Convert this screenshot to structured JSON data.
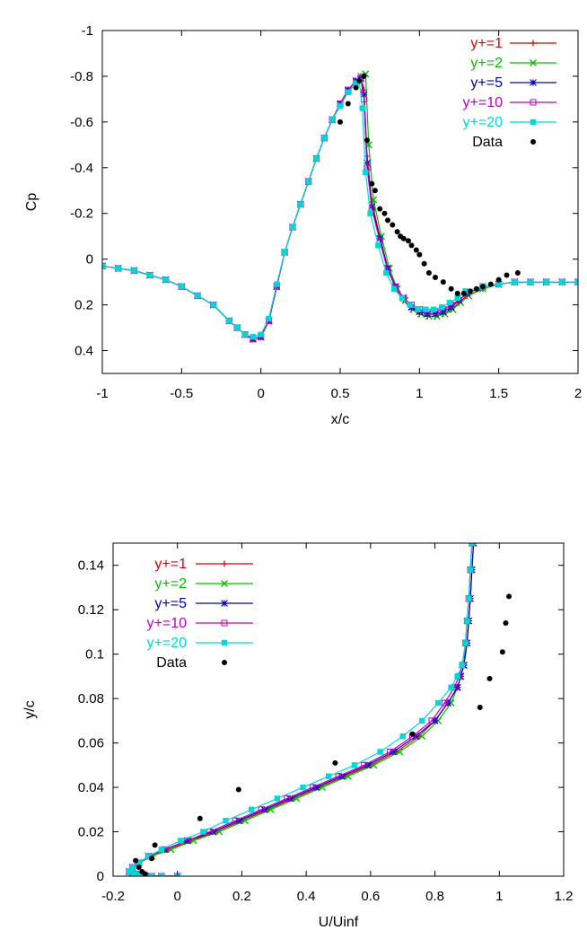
{
  "chart_data": [
    {
      "type": "line",
      "xlabel": "x/c",
      "ylabel": "Cp",
      "xlim": [
        -1,
        2
      ],
      "ylim": [
        0.5,
        -1
      ],
      "y_axis_reversed": true,
      "xticks": [
        -1,
        -0.5,
        0,
        0.5,
        1,
        1.5,
        2
      ],
      "xtick_labels": [
        "-1",
        "-0.5",
        "0",
        "0.5",
        "1",
        "1.5",
        "2"
      ],
      "yticks": [
        -1,
        -0.8,
        -0.6,
        -0.4,
        -0.2,
        0,
        0.2,
        0.4
      ],
      "ytick_labels": [
        "-1",
        "-0.8",
        "-0.6",
        "-0.4",
        "-0.2",
        "0",
        "0.2",
        "0.4"
      ],
      "grid": false,
      "legend_position": "top-right",
      "series": [
        {
          "name": "y+=1",
          "color": "#dd0000",
          "marker": "plus",
          "x": [
            -1.0,
            -0.9,
            -0.8,
            -0.7,
            -0.6,
            -0.5,
            -0.4,
            -0.3,
            -0.2,
            -0.15,
            -0.1,
            -0.05,
            0.0,
            0.05,
            0.1,
            0.15,
            0.2,
            0.25,
            0.3,
            0.35,
            0.4,
            0.45,
            0.5,
            0.55,
            0.6,
            0.63,
            0.65,
            0.67,
            0.7,
            0.75,
            0.8,
            0.85,
            0.9,
            0.95,
            1.0,
            1.05,
            1.1,
            1.15,
            1.2,
            1.25,
            1.3,
            1.4,
            1.5,
            1.6,
            1.7,
            1.8,
            1.9,
            2.0
          ],
          "y": [
            0.03,
            0.04,
            0.05,
            0.07,
            0.09,
            0.12,
            0.16,
            0.2,
            0.27,
            0.3,
            0.33,
            0.35,
            0.34,
            0.27,
            0.12,
            -0.03,
            -0.14,
            -0.24,
            -0.34,
            -0.44,
            -0.53,
            -0.61,
            -0.68,
            -0.74,
            -0.78,
            -0.8,
            -0.74,
            -0.45,
            -0.25,
            -0.1,
            0.04,
            0.13,
            0.18,
            0.22,
            0.24,
            0.25,
            0.25,
            0.24,
            0.22,
            0.19,
            0.16,
            0.13,
            0.11,
            0.1,
            0.1,
            0.1,
            0.1,
            0.1
          ]
        },
        {
          "name": "y+=2",
          "color": "#00c000",
          "marker": "cross",
          "x": [
            -1.0,
            -0.9,
            -0.8,
            -0.7,
            -0.6,
            -0.5,
            -0.4,
            -0.3,
            -0.2,
            -0.15,
            -0.1,
            -0.05,
            0.0,
            0.05,
            0.1,
            0.15,
            0.2,
            0.25,
            0.3,
            0.35,
            0.4,
            0.45,
            0.5,
            0.55,
            0.6,
            0.63,
            0.66,
            0.68,
            0.71,
            0.76,
            0.81,
            0.86,
            0.91,
            0.96,
            1.01,
            1.06,
            1.11,
            1.16,
            1.21,
            1.26,
            1.31,
            1.4,
            1.5,
            1.6,
            1.7,
            1.8,
            1.9,
            2.0
          ],
          "y": [
            0.03,
            0.04,
            0.05,
            0.07,
            0.09,
            0.12,
            0.16,
            0.2,
            0.27,
            0.3,
            0.33,
            0.35,
            0.34,
            0.27,
            0.12,
            -0.03,
            -0.14,
            -0.24,
            -0.34,
            -0.44,
            -0.53,
            -0.61,
            -0.68,
            -0.74,
            -0.78,
            -0.8,
            -0.81,
            -0.5,
            -0.26,
            -0.1,
            0.04,
            0.13,
            0.18,
            0.22,
            0.24,
            0.25,
            0.25,
            0.24,
            0.22,
            0.19,
            0.16,
            0.13,
            0.11,
            0.1,
            0.1,
            0.1,
            0.1,
            0.1
          ]
        },
        {
          "name": "y+=5",
          "color": "#0000c0",
          "marker": "star",
          "x": [
            -1.0,
            -0.9,
            -0.8,
            -0.7,
            -0.6,
            -0.5,
            -0.4,
            -0.3,
            -0.2,
            -0.15,
            -0.1,
            -0.05,
            0.0,
            0.05,
            0.1,
            0.15,
            0.2,
            0.25,
            0.3,
            0.35,
            0.4,
            0.45,
            0.5,
            0.55,
            0.6,
            0.63,
            0.65,
            0.67,
            0.7,
            0.75,
            0.8,
            0.85,
            0.9,
            0.95,
            1.0,
            1.05,
            1.1,
            1.15,
            1.2,
            1.25,
            1.3,
            1.4,
            1.5,
            1.6,
            1.7,
            1.8,
            1.9,
            2.0
          ],
          "y": [
            0.03,
            0.04,
            0.05,
            0.07,
            0.09,
            0.12,
            0.16,
            0.2,
            0.27,
            0.3,
            0.33,
            0.35,
            0.34,
            0.27,
            0.12,
            -0.03,
            -0.14,
            -0.24,
            -0.34,
            -0.44,
            -0.53,
            -0.61,
            -0.68,
            -0.74,
            -0.78,
            -0.79,
            -0.72,
            -0.42,
            -0.23,
            -0.09,
            0.04,
            0.12,
            0.17,
            0.21,
            0.23,
            0.24,
            0.24,
            0.23,
            0.21,
            0.18,
            0.15,
            0.12,
            0.11,
            0.1,
            0.1,
            0.1,
            0.1,
            0.1
          ]
        },
        {
          "name": "y+=10",
          "color": "#c000c0",
          "marker": "square-open",
          "x": [
            -1.0,
            -0.9,
            -0.8,
            -0.7,
            -0.6,
            -0.5,
            -0.4,
            -0.3,
            -0.2,
            -0.15,
            -0.1,
            -0.05,
            0.0,
            0.05,
            0.1,
            0.15,
            0.2,
            0.25,
            0.3,
            0.35,
            0.4,
            0.45,
            0.5,
            0.55,
            0.6,
            0.63,
            0.65,
            0.67,
            0.7,
            0.75,
            0.8,
            0.85,
            0.9,
            0.95,
            1.0,
            1.05,
            1.1,
            1.15,
            1.2,
            1.25,
            1.3,
            1.4,
            1.5,
            1.6,
            1.7,
            1.8,
            1.9,
            2.0
          ],
          "y": [
            0.03,
            0.04,
            0.05,
            0.07,
            0.09,
            0.12,
            0.16,
            0.2,
            0.27,
            0.3,
            0.33,
            0.35,
            0.34,
            0.27,
            0.12,
            -0.03,
            -0.14,
            -0.24,
            -0.34,
            -0.44,
            -0.53,
            -0.61,
            -0.68,
            -0.74,
            -0.78,
            -0.79,
            -0.7,
            -0.4,
            -0.22,
            -0.08,
            0.05,
            0.12,
            0.17,
            0.2,
            0.22,
            0.23,
            0.23,
            0.22,
            0.2,
            0.18,
            0.15,
            0.12,
            0.11,
            0.1,
            0.1,
            0.1,
            0.1,
            0.1
          ]
        },
        {
          "name": "y+=20",
          "color": "#00d8d8",
          "marker": "square-filled",
          "x": [
            -1.0,
            -0.9,
            -0.8,
            -0.7,
            -0.6,
            -0.5,
            -0.4,
            -0.3,
            -0.2,
            -0.15,
            -0.1,
            -0.05,
            0.0,
            0.05,
            0.1,
            0.15,
            0.2,
            0.25,
            0.3,
            0.35,
            0.4,
            0.45,
            0.5,
            0.55,
            0.6,
            0.62,
            0.64,
            0.66,
            0.69,
            0.74,
            0.79,
            0.84,
            0.89,
            0.94,
            0.99,
            1.04,
            1.09,
            1.14,
            1.19,
            1.24,
            1.29,
            1.4,
            1.5,
            1.6,
            1.7,
            1.8,
            1.9,
            2.0
          ],
          "y": [
            0.03,
            0.04,
            0.05,
            0.07,
            0.09,
            0.12,
            0.16,
            0.2,
            0.27,
            0.3,
            0.33,
            0.34,
            0.33,
            0.26,
            0.11,
            -0.03,
            -0.14,
            -0.24,
            -0.34,
            -0.44,
            -0.53,
            -0.61,
            -0.67,
            -0.73,
            -0.77,
            -0.78,
            -0.66,
            -0.38,
            -0.2,
            -0.06,
            0.06,
            0.13,
            0.17,
            0.2,
            0.22,
            0.22,
            0.22,
            0.21,
            0.19,
            0.17,
            0.14,
            0.12,
            0.11,
            0.1,
            0.1,
            0.1,
            0.1,
            0.1
          ]
        },
        {
          "name": "Data",
          "color": "#000000",
          "marker": "dot",
          "style": "points",
          "x": [
            0.5,
            0.55,
            0.6,
            0.62,
            0.65,
            0.67,
            0.7,
            0.72,
            0.75,
            0.78,
            0.8,
            0.83,
            0.86,
            0.88,
            0.9,
            0.93,
            0.95,
            0.98,
            1.0,
            1.03,
            1.06,
            1.1,
            1.15,
            1.2,
            1.24,
            1.28,
            1.32,
            1.36,
            1.4,
            1.45,
            1.5,
            1.55,
            1.62
          ],
          "y": [
            -0.6,
            -0.68,
            -0.75,
            -0.78,
            -0.8,
            -0.52,
            -0.33,
            -0.3,
            -0.22,
            -0.2,
            -0.17,
            -0.15,
            -0.12,
            -0.1,
            -0.09,
            -0.08,
            -0.06,
            -0.04,
            -0.02,
            0.02,
            0.06,
            0.08,
            0.1,
            0.13,
            0.15,
            0.15,
            0.14,
            0.13,
            0.12,
            0.11,
            0.09,
            0.07,
            0.06
          ]
        }
      ]
    },
    {
      "type": "line",
      "xlabel": "U/Uinf",
      "ylabel": "y/c",
      "xlim": [
        -0.2,
        1.2
      ],
      "ylim": [
        0,
        0.15
      ],
      "xticks": [
        -0.2,
        0,
        0.2,
        0.4,
        0.6,
        0.8,
        1,
        1.2
      ],
      "xtick_labels": [
        "-0.2",
        "0",
        "0.2",
        "0.4",
        "0.6",
        "0.8",
        "1",
        "1.2"
      ],
      "yticks": [
        0,
        0.02,
        0.04,
        0.06,
        0.08,
        0.1,
        0.12,
        0.14
      ],
      "ytick_labels": [
        "0",
        "0.02",
        "0.04",
        "0.06",
        "0.08",
        "0.1",
        "0.12",
        "0.14"
      ],
      "grid": false,
      "legend_position": "top-left",
      "series": [
        {
          "name": "y+=1",
          "color": "#dd0000",
          "marker": "plus",
          "x": [
            0.0,
            -0.05,
            -0.08,
            -0.1,
            -0.12,
            -0.13,
            -0.14,
            -0.15,
            -0.14,
            -0.12,
            -0.08,
            -0.03,
            0.04,
            0.12,
            0.2,
            0.28,
            0.36,
            0.44,
            0.52,
            0.6,
            0.68,
            0.75,
            0.8,
            0.84,
            0.87,
            0.88,
            0.89,
            0.9,
            0.905,
            0.91,
            0.915,
            0.92
          ],
          "y": [
            0.0,
            0.0,
            0.0,
            0.0,
            0.0005,
            0.001,
            0.0015,
            0.002,
            0.004,
            0.006,
            0.009,
            0.012,
            0.016,
            0.02,
            0.025,
            0.03,
            0.035,
            0.04,
            0.045,
            0.05,
            0.056,
            0.063,
            0.07,
            0.078,
            0.085,
            0.09,
            0.095,
            0.105,
            0.115,
            0.125,
            0.138,
            0.15
          ]
        },
        {
          "name": "y+=2",
          "color": "#00c000",
          "marker": "cross",
          "x": [
            0.0,
            -0.05,
            -0.08,
            -0.1,
            -0.12,
            -0.13,
            -0.14,
            -0.15,
            -0.14,
            -0.12,
            -0.08,
            -0.02,
            0.05,
            0.13,
            0.21,
            0.29,
            0.37,
            0.45,
            0.53,
            0.61,
            0.69,
            0.76,
            0.81,
            0.85,
            0.87,
            0.88,
            0.89,
            0.895,
            0.9,
            0.905,
            0.91,
            0.915
          ],
          "y": [
            0.0,
            0.0,
            0.0,
            0.0,
            0.0005,
            0.001,
            0.0015,
            0.002,
            0.004,
            0.006,
            0.009,
            0.012,
            0.016,
            0.02,
            0.025,
            0.03,
            0.035,
            0.04,
            0.045,
            0.05,
            0.056,
            0.063,
            0.07,
            0.078,
            0.085,
            0.09,
            0.095,
            0.105,
            0.115,
            0.125,
            0.138,
            0.15
          ]
        },
        {
          "name": "y+=5",
          "color": "#0000c0",
          "marker": "star",
          "x": [
            0.0,
            -0.05,
            -0.08,
            -0.1,
            -0.12,
            -0.13,
            -0.14,
            -0.15,
            -0.14,
            -0.12,
            -0.09,
            -0.04,
            0.03,
            0.11,
            0.19,
            0.27,
            0.35,
            0.43,
            0.51,
            0.59,
            0.67,
            0.74,
            0.8,
            0.84,
            0.87,
            0.88,
            0.89,
            0.9,
            0.905,
            0.91,
            0.915,
            0.92
          ],
          "y": [
            0.0,
            0.0,
            0.0,
            0.0,
            0.0005,
            0.001,
            0.0015,
            0.002,
            0.004,
            0.006,
            0.009,
            0.012,
            0.016,
            0.02,
            0.025,
            0.03,
            0.035,
            0.04,
            0.045,
            0.05,
            0.056,
            0.063,
            0.07,
            0.078,
            0.085,
            0.09,
            0.095,
            0.105,
            0.115,
            0.125,
            0.138,
            0.15
          ]
        },
        {
          "name": "y+=10",
          "color": "#c000c0",
          "marker": "square-open",
          "x": [
            0.0,
            -0.05,
            -0.08,
            -0.1,
            -0.12,
            -0.13,
            -0.14,
            -0.15,
            -0.14,
            -0.12,
            -0.09,
            -0.04,
            0.03,
            0.1,
            0.18,
            0.26,
            0.34,
            0.42,
            0.5,
            0.58,
            0.66,
            0.73,
            0.79,
            0.83,
            0.86,
            0.875,
            0.885,
            0.895,
            0.9,
            0.905,
            0.91,
            0.915
          ],
          "y": [
            0.0,
            0.0,
            0.0,
            0.0,
            0.0005,
            0.001,
            0.0015,
            0.002,
            0.004,
            0.006,
            0.009,
            0.012,
            0.016,
            0.02,
            0.025,
            0.03,
            0.035,
            0.04,
            0.045,
            0.05,
            0.056,
            0.063,
            0.07,
            0.078,
            0.085,
            0.09,
            0.095,
            0.105,
            0.115,
            0.125,
            0.138,
            0.15
          ]
        },
        {
          "name": "y+=20",
          "color": "#00d8d8",
          "marker": "square-filled",
          "x": [
            0.0,
            -0.05,
            -0.08,
            -0.1,
            -0.12,
            -0.13,
            -0.14,
            -0.15,
            -0.14,
            -0.12,
            -0.09,
            -0.05,
            0.01,
            0.08,
            0.15,
            0.23,
            0.31,
            0.39,
            0.47,
            0.55,
            0.63,
            0.7,
            0.76,
            0.81,
            0.85,
            0.87,
            0.885,
            0.895,
            0.9,
            0.905,
            0.91,
            0.915
          ],
          "y": [
            0.0,
            0.0,
            0.0,
            0.0,
            0.0005,
            0.001,
            0.0015,
            0.002,
            0.004,
            0.006,
            0.009,
            0.012,
            0.016,
            0.02,
            0.025,
            0.03,
            0.035,
            0.04,
            0.045,
            0.05,
            0.056,
            0.063,
            0.07,
            0.078,
            0.085,
            0.09,
            0.095,
            0.105,
            0.115,
            0.125,
            0.138,
            0.15
          ]
        },
        {
          "name": "Data",
          "color": "#000000",
          "marker": "dot",
          "style": "points",
          "x": [
            -0.1,
            -0.11,
            -0.12,
            -0.13,
            -0.08,
            -0.07,
            0.07,
            0.19,
            0.49,
            0.73,
            0.94,
            0.97,
            1.01,
            1.02,
            1.03
          ],
          "y": [
            0.001,
            0.002,
            0.004,
            0.007,
            0.008,
            0.014,
            0.026,
            0.039,
            0.051,
            0.064,
            0.076,
            0.089,
            0.101,
            0.114,
            0.126
          ]
        }
      ]
    }
  ]
}
